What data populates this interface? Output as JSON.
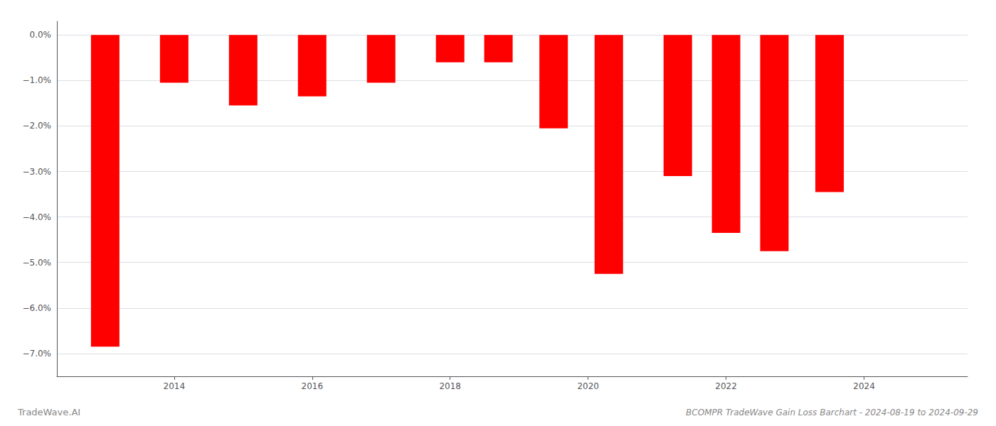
{
  "chart_data": {
    "type": "bar",
    "title": "BCOMPR TradeWave Gain Loss Barchart - 2024-08-19 to 2024-09-29",
    "annotations": [
      "TradeWave.AI"
    ],
    "x": [
      2013,
      2014,
      2015,
      2016,
      2017,
      2018,
      2018.7,
      2019.5,
      2020.3,
      2021.3,
      2022,
      2022.7,
      2023.5
    ],
    "values": [
      -6.85,
      -1.05,
      -1.55,
      -1.35,
      -1.05,
      -0.6,
      -0.6,
      -2.05,
      -5.25,
      -3.1,
      -4.35,
      -4.75,
      -3.45
    ],
    "color": "#ff0000",
    "xlim": [
      2012.3,
      2025.5
    ],
    "xticks": [
      2014,
      2016,
      2018,
      2020,
      2022,
      2024
    ],
    "ylim": [
      -7.5,
      0.3
    ],
    "yticks": [
      {
        "value": 0.0,
        "label": "0.0%"
      },
      {
        "value": -1.0,
        "label": "−1.0%"
      },
      {
        "value": -2.0,
        "label": "−2.0%"
      },
      {
        "value": -3.0,
        "label": "−3.0%"
      },
      {
        "value": -4.0,
        "label": "−4.0%"
      },
      {
        "value": -5.0,
        "label": "−5.0%"
      },
      {
        "value": -6.0,
        "label": "−6.0%"
      },
      {
        "value": -7.0,
        "label": "−7.0%"
      }
    ],
    "grid": true
  }
}
